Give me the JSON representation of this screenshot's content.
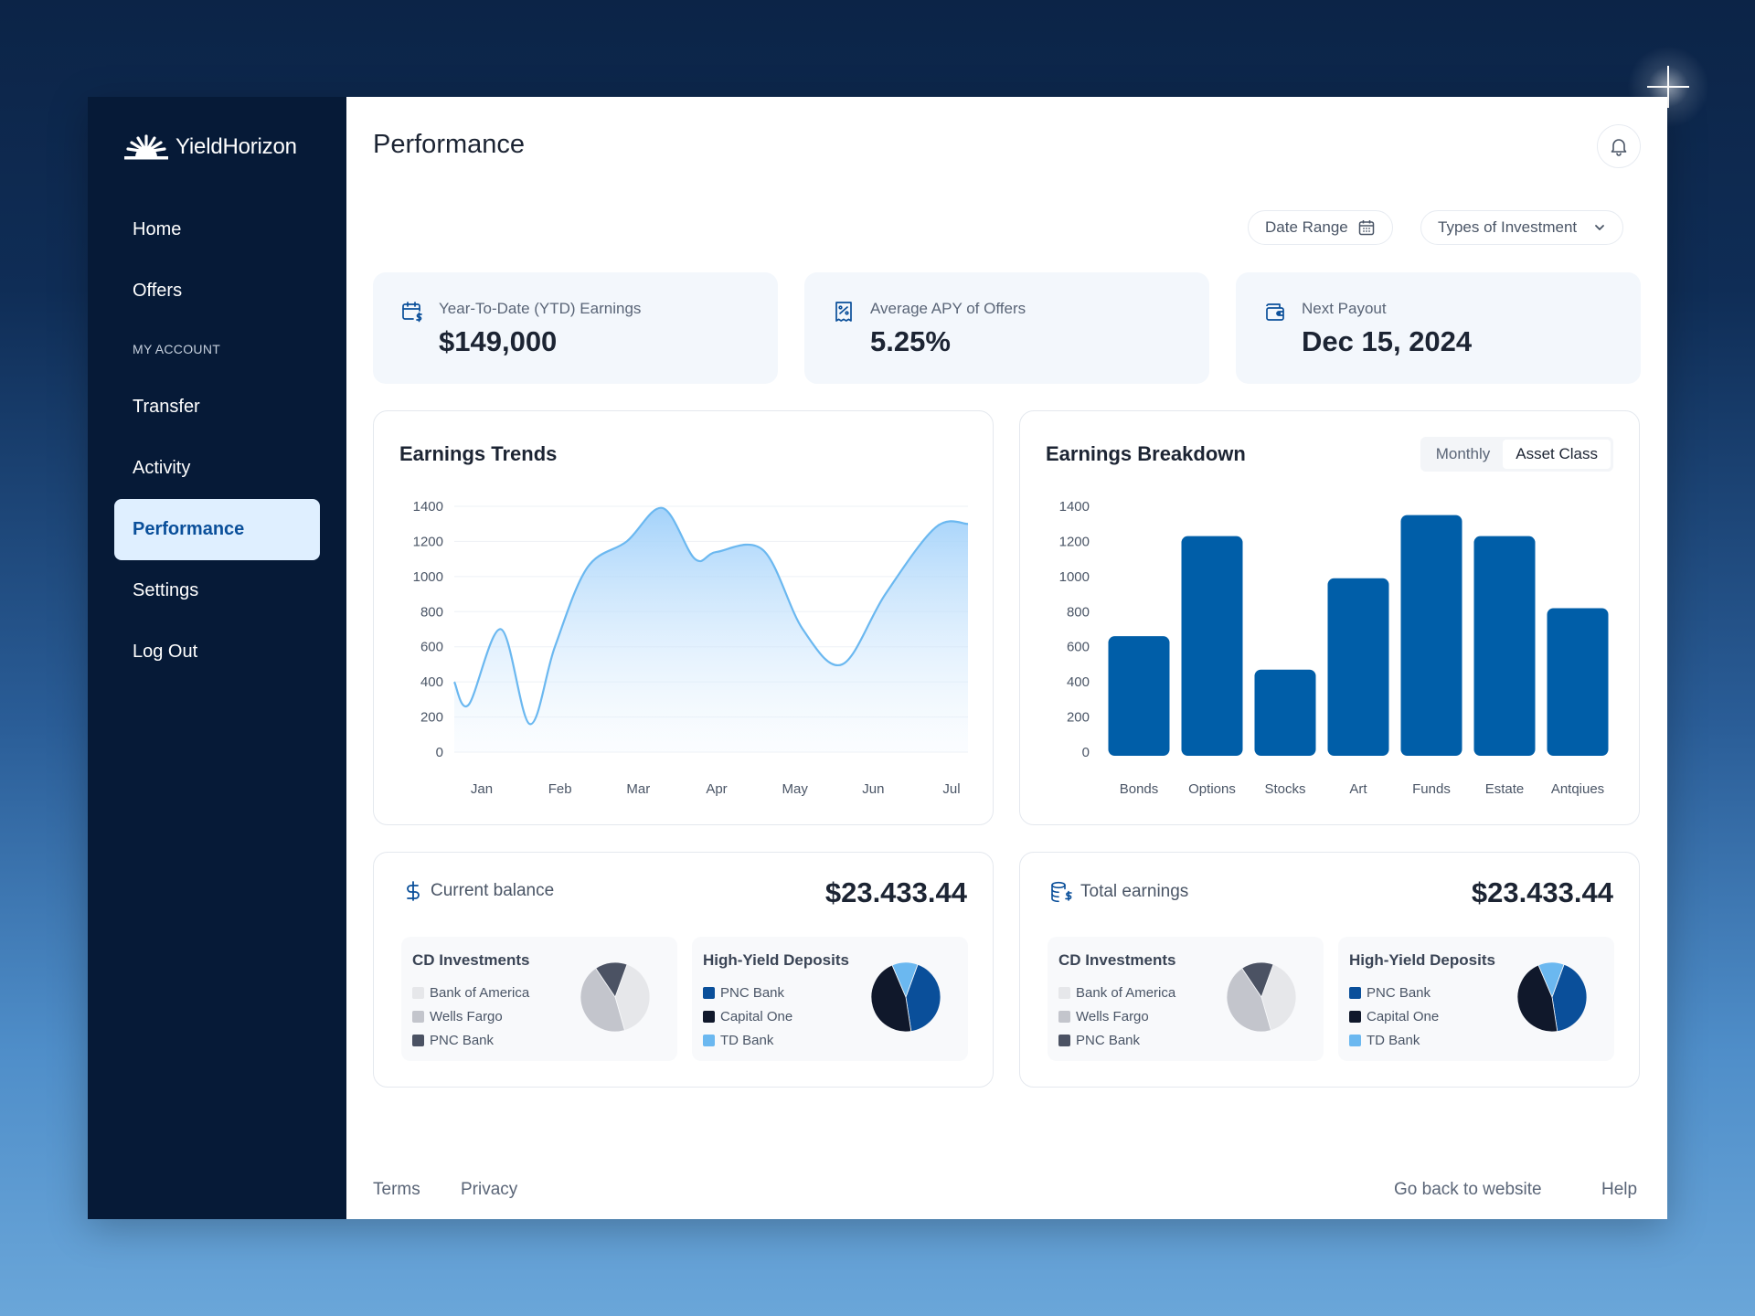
{
  "app": {
    "brand": "YieldHorizon"
  },
  "sidebar": {
    "items": [
      {
        "label": "Home"
      },
      {
        "label": "Offers"
      }
    ],
    "section_label": "MY ACCOUNT",
    "account_items": [
      {
        "label": "Transfer"
      },
      {
        "label": "Activity"
      },
      {
        "label": "Performance",
        "active": true
      },
      {
        "label": "Settings"
      },
      {
        "label": "Log Out"
      }
    ]
  },
  "header": {
    "title": "Performance"
  },
  "filters": {
    "date_range": "Date Range",
    "types": "Types of Investment"
  },
  "stats": [
    {
      "label": "Year-To-Date (YTD) Earnings",
      "value": "$149,000",
      "icon": "calendar-dollar-icon"
    },
    {
      "label": "Average APY of Offers",
      "value": "5.25%",
      "icon": "receipt-percent-icon"
    },
    {
      "label": "Next Payout",
      "value": "Dec 15, 2024",
      "icon": "wallet-icon"
    }
  ],
  "trends": {
    "title": "Earnings Trends",
    "chart_data": {
      "type": "area",
      "title": "Earnings Trends",
      "categories": [
        "Jan",
        "Feb",
        "Mar",
        "Apr",
        "May",
        "Jun",
        "Jul"
      ],
      "x": [
        0.2,
        0.4,
        0.85,
        1.25,
        1.6,
        2.05,
        2.6,
        3.1,
        3.55,
        3.85,
        4.5,
        5.05,
        5.6,
        6.2,
        6.9,
        7.35
      ],
      "values": [
        400,
        270,
        700,
        160,
        600,
        1050,
        1200,
        1390,
        1100,
        1140,
        1150,
        700,
        500,
        900,
        1280,
        1300
      ],
      "yticks": [
        0,
        200,
        400,
        600,
        800,
        1000,
        1200,
        1400
      ],
      "ylim": [
        0,
        1400
      ],
      "color": "#6bb8f0"
    }
  },
  "breakdown": {
    "title": "Earnings Breakdown",
    "toggle": [
      "Monthly",
      "Asset Class"
    ],
    "active_toggle": "Asset Class",
    "chart_data": {
      "type": "bar",
      "title": "Earnings Breakdown",
      "categories": [
        "Bonds",
        "Options",
        "Stocks",
        "Art",
        "Funds",
        "Estate",
        "Antqiues"
      ],
      "values": [
        660,
        1230,
        470,
        990,
        1350,
        1230,
        820
      ],
      "yticks": [
        0,
        200,
        400,
        600,
        800,
        1000,
        1200,
        1400
      ],
      "ylim": [
        0,
        1400
      ],
      "color": "#005ea8"
    }
  },
  "balance": {
    "label": "Current balance",
    "amount": "$23.433.44",
    "cd": {
      "title": "CD Investments",
      "legend": [
        {
          "name": "Bank of America",
          "color": "#e6e7ea"
        },
        {
          "name": "Wells Fargo",
          "color": "#c3c5cc"
        },
        {
          "name": "PNC Bank",
          "color": "#4b5263"
        }
      ],
      "chart_data": {
        "type": "pie",
        "labels": [
          "Bank of America",
          "Wells Fargo",
          "PNC Bank"
        ],
        "values": [
          40,
          45,
          15
        ]
      }
    },
    "hy": {
      "title": "High-Yield Deposits",
      "legend": [
        {
          "name": "PNC Bank",
          "color": "#0a4f9a"
        },
        {
          "name": "Capital One",
          "color": "#10182b"
        },
        {
          "name": "TD Bank",
          "color": "#6bb8f0"
        }
      ],
      "chart_data": {
        "type": "pie",
        "labels": [
          "PNC Bank",
          "Capital One",
          "TD Bank"
        ],
        "values": [
          42,
          46,
          12
        ]
      }
    }
  },
  "earnings": {
    "label": "Total earnings",
    "amount": "$23.433.44",
    "cd": {
      "title": "CD Investments",
      "legend": [
        {
          "name": "Bank of America",
          "color": "#e6e7ea"
        },
        {
          "name": "Wells Fargo",
          "color": "#c3c5cc"
        },
        {
          "name": "PNC Bank",
          "color": "#4b5263"
        }
      ],
      "chart_data": {
        "type": "pie",
        "labels": [
          "Bank of America",
          "Wells Fargo",
          "PNC Bank"
        ],
        "values": [
          40,
          45,
          15
        ]
      }
    },
    "hy": {
      "title": "High-Yield Deposits",
      "legend": [
        {
          "name": "PNC Bank",
          "color": "#0a4f9a"
        },
        {
          "name": "Capital One",
          "color": "#10182b"
        },
        {
          "name": "TD Bank",
          "color": "#6bb8f0"
        }
      ],
      "chart_data": {
        "type": "pie",
        "labels": [
          "PNC Bank",
          "Capital One",
          "TD Bank"
        ],
        "values": [
          42,
          46,
          12
        ]
      }
    }
  },
  "footer": {
    "terms": "Terms",
    "privacy": "Privacy",
    "back": "Go back to website",
    "help": "Help"
  }
}
